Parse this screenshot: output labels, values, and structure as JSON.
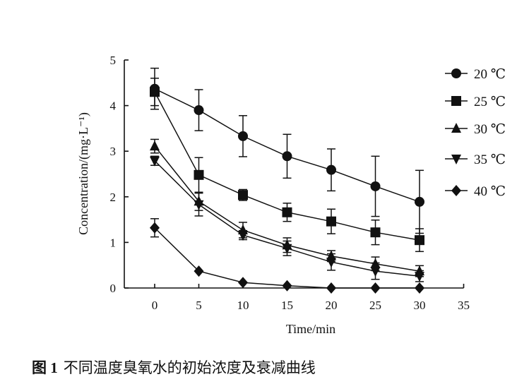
{
  "caption": {
    "figure_no": "图 1",
    "text": "不同温度臭氧水的初始浓度及衰减曲线"
  },
  "chart_data": {
    "type": "line",
    "xlabel": "Time/min",
    "ylabel": "Concentration/(mg·L⁻¹)",
    "xlim": [
      0,
      35
    ],
    "ylim": [
      0,
      5
    ],
    "xticks": [
      0,
      5,
      10,
      15,
      20,
      25,
      30,
      35
    ],
    "yticks": [
      0,
      1,
      2,
      3,
      4,
      5
    ],
    "grid": false,
    "legend_position": "right",
    "x": [
      0,
      5,
      10,
      15,
      20,
      25,
      30
    ],
    "series": [
      {
        "name": "20 ℃",
        "marker": "circle",
        "values": [
          4.37,
          3.9,
          3.33,
          2.89,
          2.59,
          2.23,
          1.89
        ],
        "error": [
          0.45,
          0.45,
          0.45,
          0.48,
          0.46,
          0.66,
          0.69
        ]
      },
      {
        "name": "25 ℃",
        "marker": "square",
        "values": [
          4.3,
          2.48,
          2.04,
          1.66,
          1.46,
          1.22,
          1.05
        ],
        "error": [
          0.3,
          0.38,
          0.12,
          0.2,
          0.27,
          0.27,
          0.25
        ]
      },
      {
        "name": "30 ℃",
        "marker": "triangle-up",
        "values": [
          3.11,
          1.9,
          1.27,
          0.94,
          0.7,
          0.53,
          0.37
        ],
        "error": [
          0.15,
          0.2,
          0.17,
          0.16,
          0.12,
          0.15,
          0.12
        ]
      },
      {
        "name": "35 ℃",
        "marker": "triangle-down",
        "values": [
          2.79,
          1.83,
          1.16,
          0.87,
          0.57,
          0.37,
          0.26
        ],
        "error": [
          0.1,
          0.25,
          0.1,
          0.16,
          0.18,
          0.18,
          0.12
        ]
      },
      {
        "name": "40 ℃",
        "marker": "diamond",
        "values": [
          1.32,
          0.37,
          0.12,
          0.05,
          0.0,
          0.0,
          0.0
        ],
        "error": [
          0.2,
          0.0,
          0.0,
          0.0,
          0.0,
          0.0,
          0.0
        ]
      }
    ]
  }
}
